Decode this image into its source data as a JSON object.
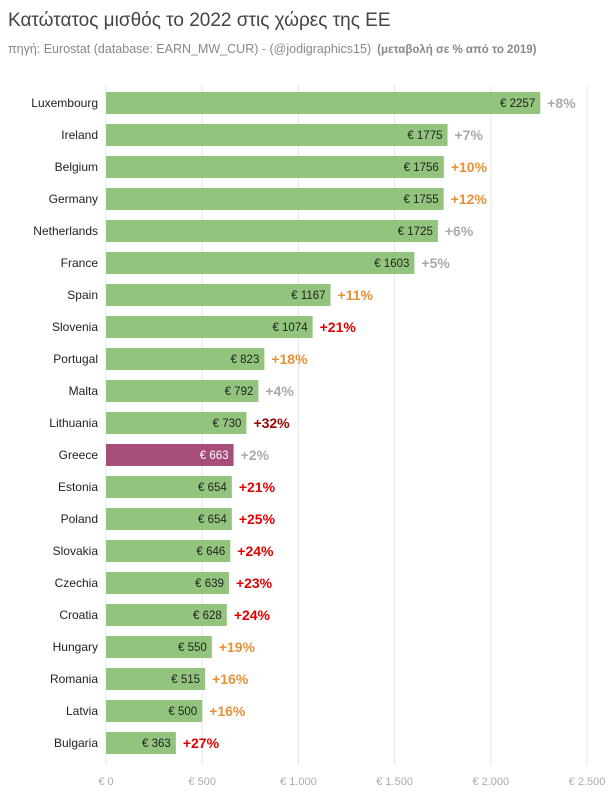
{
  "header": {
    "title": "Κατώτατος μισθός το 2022 στις χώρες της ΕΕ",
    "source": "πηγή: Eurostat (database: EARN_MW_CUR) - (@jodigraphics15)",
    "note": "(μεταβολή σε % από το 2019)"
  },
  "colors": {
    "bar": "#93c47d",
    "highlight": "#a64d79",
    "change_low": "#aaaaaa",
    "change_mid": "#e69138",
    "change_high": "#e00000",
    "change_top": "#990000",
    "grid": "#e6e6e6"
  },
  "chart_data": {
    "type": "bar",
    "orientation": "horizontal",
    "title": "Κατώτατος μισθός το 2022 στις χώρες της ΕΕ",
    "xlabel": "",
    "ylabel": "",
    "xlim": [
      0,
      2500
    ],
    "grid": true,
    "categories": [
      "Luxembourg",
      "Ireland",
      "Belgium",
      "Germany",
      "Netherlands",
      "France",
      "Spain",
      "Slovenia",
      "Portugal",
      "Malta",
      "Lithuania",
      "Greece",
      "Estonia",
      "Poland",
      "Slovakia",
      "Czechia",
      "Croatia",
      "Hungary",
      "Romania",
      "Latvia",
      "Bulgaria"
    ],
    "values": [
      2257,
      1775,
      1756,
      1755,
      1725,
      1603,
      1167,
      1074,
      823,
      792,
      730,
      663,
      654,
      654,
      646,
      639,
      628,
      550,
      515,
      500,
      363
    ],
    "value_labels": [
      "€ 2257",
      "€ 1775",
      "€ 1756",
      "€ 1755",
      "€ 1725",
      "€ 1603",
      "€ 1167",
      "€ 1074",
      "€ 823",
      "€ 792",
      "€ 730",
      "€ 663",
      "€ 654",
      "€ 654",
      "€ 646",
      "€ 639",
      "€ 628",
      "€ 550",
      "€ 515",
      "€ 500",
      "€ 363"
    ],
    "change_pct": [
      8,
      7,
      10,
      12,
      6,
      5,
      11,
      21,
      18,
      4,
      32,
      2,
      21,
      25,
      24,
      23,
      24,
      19,
      16,
      16,
      27
    ],
    "change_labels": [
      "+8%",
      "+7%",
      "+10%",
      "+12%",
      "+6%",
      "+5%",
      "+11%",
      "+21%",
      "+18%",
      "+4%",
      "+32%",
      "+2%",
      "+21%",
      "+25%",
      "+24%",
      "+23%",
      "+24%",
      "+19%",
      "+16%",
      "+16%",
      "+27%"
    ],
    "highlight": "Greece",
    "x_ticks": [
      0,
      500,
      1000,
      1500,
      2000,
      2500
    ],
    "x_tick_labels": [
      "€ 0",
      "€ 500",
      "€ 1.000",
      "€ 1.500",
      "€ 2.000",
      "€ 2.500"
    ]
  }
}
